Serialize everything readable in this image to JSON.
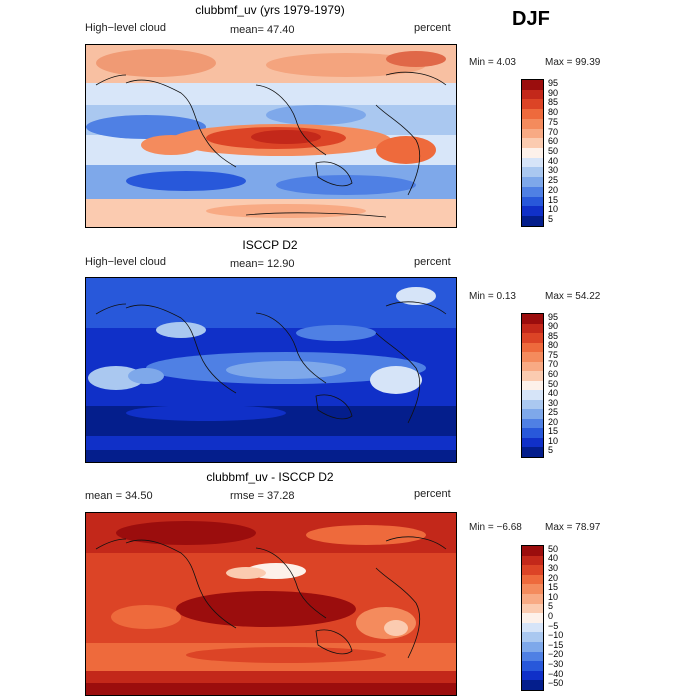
{
  "season": "DJF",
  "panels": [
    {
      "title": "clubbmf_uv (yrs 1979-1979)",
      "left_label": "High−level cloud",
      "center_label": "mean=  47.40",
      "right_label": "percent",
      "min_text": "Min =    4.03",
      "max_text": "Max =  99.39",
      "colorbar_labels": [
        "95",
        "90",
        "85",
        "80",
        "75",
        "70",
        "60",
        "50",
        "40",
        "30",
        "25",
        "20",
        "15",
        "10",
        "5"
      ],
      "colorbar_colors": [
        "#9b0d0d",
        "#c3281a",
        "#dc4426",
        "#ee6a3c",
        "#f48b5d",
        "#f8aa84",
        "#fbcbb0",
        "#fdf1ea",
        "#d6e4f8",
        "#aac8f0",
        "#7ea8ea",
        "#4f80e4",
        "#2858da",
        "#1030c8",
        "#041e8c"
      ]
    },
    {
      "title": "ISCCP D2",
      "left_label": "High−level cloud",
      "center_label": "mean=  12.90",
      "right_label": "percent",
      "min_text": "Min =    0.13",
      "max_text": "Max =  54.22",
      "colorbar_labels": [
        "95",
        "90",
        "85",
        "80",
        "75",
        "70",
        "60",
        "50",
        "40",
        "30",
        "25",
        "20",
        "15",
        "10",
        "5"
      ],
      "colorbar_colors": [
        "#9b0d0d",
        "#c3281a",
        "#dc4426",
        "#ee6a3c",
        "#f48b5d",
        "#f8aa84",
        "#fbcbb0",
        "#fdf1ea",
        "#d6e4f8",
        "#aac8f0",
        "#7ea8ea",
        "#4f80e4",
        "#2858da",
        "#1030c8",
        "#041e8c"
      ]
    },
    {
      "title": "clubbmf_uv - ISCCP D2",
      "left_label": "mean =   34.50",
      "center_label": "rmse =   37.28",
      "right_label": "percent",
      "min_text": "Min =  −6.68",
      "max_text": "Max =  78.97",
      "colorbar_labels": [
        "50",
        "40",
        "30",
        "20",
        "15",
        "10",
        "5",
        "0",
        "−5",
        "−10",
        "−15",
        "−20",
        "−30",
        "−40",
        "−50"
      ],
      "colorbar_colors": [
        "#9b0d0d",
        "#c3281a",
        "#dc4426",
        "#ee6a3c",
        "#f48b5d",
        "#f8aa84",
        "#fbcbb0",
        "#fdf1ea",
        "#d6e4f8",
        "#aac8f0",
        "#7ea8ea",
        "#4f80e4",
        "#2858da",
        "#1030c8",
        "#041e8c"
      ]
    }
  ],
  "chart_data": [
    {
      "type": "heatmap",
      "title": "clubbmf_uv (yrs 1979-1979)",
      "variable": "High−level cloud",
      "units": "percent",
      "mean": 47.4,
      "min": 4.03,
      "max": 99.39,
      "levels": [
        5,
        10,
        15,
        20,
        25,
        30,
        40,
        50,
        60,
        70,
        75,
        80,
        85,
        90,
        95
      ]
    },
    {
      "type": "heatmap",
      "title": "ISCCP D2",
      "variable": "High−level cloud",
      "units": "percent",
      "mean": 12.9,
      "min": 0.13,
      "max": 54.22,
      "levels": [
        5,
        10,
        15,
        20,
        25,
        30,
        40,
        50,
        60,
        70,
        75,
        80,
        85,
        90,
        95
      ]
    },
    {
      "type": "heatmap",
      "title": "clubbmf_uv - ISCCP D2",
      "units": "percent",
      "mean": 34.5,
      "rmse": 37.28,
      "min": -6.68,
      "max": 78.97,
      "levels": [
        -50,
        -40,
        -30,
        -20,
        -15,
        -10,
        -5,
        0,
        5,
        10,
        15,
        20,
        30,
        40,
        50
      ]
    }
  ]
}
